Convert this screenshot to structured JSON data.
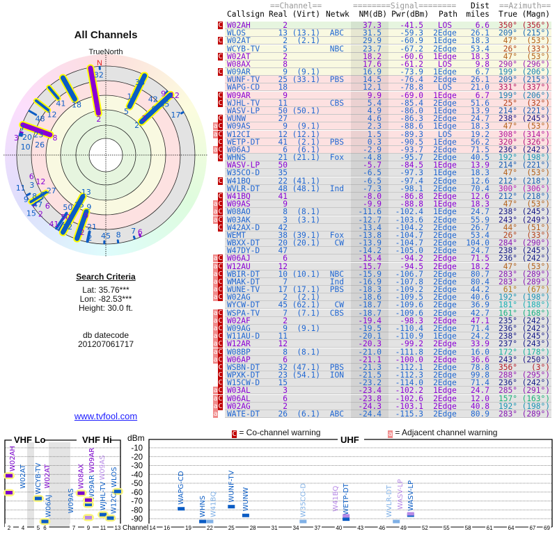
{
  "left_panel": {
    "title": "All Channels",
    "north_label": "TrueNorth",
    "north_marker": "N",
    "search_title": "Search Criteria",
    "lat": "Lat: 35.76***",
    "lon": "Lon: -82.53***",
    "height": "Height: 30.0 ft.",
    "db_label": "db datecode",
    "db_code": "201207061717",
    "link": "www.tvfool.com"
  },
  "table": {
    "group_headers": {
      "channel": "==Channel==",
      "signal": "========Signal========",
      "dist": "Dist",
      "azimuth": "==Azimuth=="
    },
    "headers": {
      "callsign": "Callsign",
      "real": "Real",
      "virt": "(Virt)",
      "netwk": "Netwk",
      "nm": "NM(dB)",
      "pwr": "Pwr(dBm)",
      "path": "Path",
      "miles": "miles",
      "true": "True",
      "magn": "(Magn)"
    },
    "rows": [
      {
        "w": "C",
        "cs": "W02AH",
        "ch": "2",
        "vt": "",
        "nw": "",
        "nm": "37.3",
        "pw": "-41.5",
        "pa": "LOS",
        "di": "6.6",
        "tr": "350°",
        "mg": "(356°)",
        "tx": true
      },
      {
        "w": "",
        "cs": "WLOS",
        "ch": "13",
        "vt": "(13.1)",
        "nw": "ABC",
        "nm": "31.5",
        "pw": "-59.3",
        "pa": "2Edge",
        "di": "26.1",
        "tr": "209°",
        "mg": "(215°)",
        "tx": false
      },
      {
        "w": "C",
        "cs": "W02AT",
        "ch": "2",
        "vt": "(2.1)",
        "nw": "",
        "nm": "29.9",
        "pw": "-60.9",
        "pa": "1Edge",
        "di": "18.3",
        "tr": "47°",
        "mg": "(53°)",
        "tx": false
      },
      {
        "w": "",
        "cs": "WCYB-TV",
        "ch": "5",
        "vt": "",
        "nw": "NBC",
        "nm": "23.7",
        "pw": "-67.2",
        "pa": "2Edge",
        "di": "53.4",
        "tr": "26°",
        "mg": "(33°)",
        "tx": false
      },
      {
        "w": "C",
        "cs": "W02AT",
        "ch": "2",
        "vt": "",
        "nw": "",
        "nm": "18.2",
        "pw": "-60.6",
        "pa": "1Edge",
        "di": "18.3",
        "tr": "47°",
        "mg": "(53°)",
        "tx": true
      },
      {
        "w": "",
        "cs": "W08AX",
        "ch": "8",
        "vt": "",
        "nw": "",
        "nm": "17.6",
        "pw": "-61.2",
        "pa": "LOS",
        "di": "9.8",
        "tr": "290°",
        "mg": "(296°)",
        "tx": true
      },
      {
        "w": "C",
        "cs": "W09AR",
        "ch": "9",
        "vt": "(9.1)",
        "nw": "",
        "nm": "16.9",
        "pw": "-73.9",
        "pa": "1Edge",
        "di": "6.7",
        "tr": "199°",
        "mg": "(206°)",
        "tx": false
      },
      {
        "w": "",
        "cs": "WUNF-TV",
        "ch": "25",
        "vt": "(33.1)",
        "nw": "PBS",
        "nm": "14.5",
        "pw": "-76.4",
        "pa": "2Edge",
        "di": "26.1",
        "tr": "209°",
        "mg": "(215°)",
        "tx": false
      },
      {
        "w": "",
        "cs": "WAPG-CD",
        "ch": "18",
        "vt": "",
        "nw": "",
        "nm": "12.1",
        "pw": "-78.8",
        "pa": "LOS",
        "di": "21.0",
        "tr": "331°",
        "mg": "(337°)",
        "tx": false
      },
      {
        "w": "C",
        "cs": "W09AR",
        "ch": "9",
        "vt": "",
        "nw": "",
        "nm": "9.9",
        "pw": "-69.0",
        "pa": "1Edge",
        "di": "6.7",
        "tr": "199°",
        "mg": "(206°)",
        "tx": true
      },
      {
        "w": "C",
        "cs": "WJHL-TV",
        "ch": "11",
        "vt": "",
        "nw": "CBS",
        "nm": "5.4",
        "pw": "-85.4",
        "pa": "2Edge",
        "di": "51.6",
        "tr": "25°",
        "mg": "(32°)",
        "tx": false
      },
      {
        "w": "",
        "cs": "WASV-LP",
        "ch": "50",
        "vt": "(50.1)",
        "nw": "",
        "nm": "4.9",
        "pw": "-86.0",
        "pa": "1Edge",
        "di": "13.9",
        "tr": "214°",
        "mg": "(221°)",
        "tx": false
      },
      {
        "w": "C",
        "cs": "WUNW",
        "ch": "27",
        "vt": "",
        "nw": "",
        "nm": "4.6",
        "pw": "-86.3",
        "pa": "2Edge",
        "di": "24.7",
        "tr": "238°",
        "mg": "(245°)",
        "tx": false
      },
      {
        "w": "aC",
        "cs": "W09AS",
        "ch": "9",
        "vt": "(9.1)",
        "nw": "",
        "nm": "2.3",
        "pw": "-88.6",
        "pa": "1Edge",
        "di": "18.3",
        "tr": "47°",
        "mg": "(53°)",
        "tx": false
      },
      {
        "w": "aC",
        "cs": "W12CI",
        "ch": "12",
        "vt": "(12.1)",
        "nw": "",
        "nm": "1.5",
        "pw": "-89.3",
        "pa": "LOS",
        "di": "19.2",
        "tr": "308°",
        "mg": "(314°)",
        "tx": false
      },
      {
        "w": "C",
        "cs": "WETP-DT",
        "ch": "41",
        "vt": "(2.1)",
        "nw": "PBS",
        "nm": "0.3",
        "pw": "-90.5",
        "pa": "1Edge",
        "di": "56.2",
        "tr": "320°",
        "mg": "(326°)",
        "tx": false
      },
      {
        "w": "aC",
        "cs": "W06AJ",
        "ch": "6",
        "vt": "(6.1)",
        "nw": "",
        "nm": "-2.9",
        "pw": "-93.7",
        "pa": "2Edge",
        "di": "71.5",
        "tr": "236°",
        "mg": "(242°)",
        "tx": false
      },
      {
        "w": "C",
        "cs": "WHNS",
        "ch": "21",
        "vt": "(21.1)",
        "nw": "Fox",
        "nm": "-4.8",
        "pw": "-95.7",
        "pa": "2Edge",
        "di": "40.5",
        "tr": "192°",
        "mg": "(198°)",
        "tx": false
      },
      {
        "w": "",
        "cs": "WASV-LP",
        "ch": "50",
        "vt": "",
        "nw": "",
        "nm": "-5.7",
        "pw": "-84.5",
        "pa": "1Edge",
        "di": "13.9",
        "tr": "214°",
        "mg": "(221°)",
        "tx": true
      },
      {
        "w": "",
        "cs": "W35CO-D",
        "ch": "35",
        "vt": "",
        "nw": "",
        "nm": "-6.5",
        "pw": "-97.3",
        "pa": "1Edge",
        "di": "18.3",
        "tr": "47°",
        "mg": "(53°)",
        "tx": false
      },
      {
        "w": "C",
        "cs": "W41BQ",
        "ch": "22",
        "vt": "(41.1)",
        "nw": "",
        "nm": "-6.5",
        "pw": "-97.4",
        "pa": "2Edge",
        "di": "12.6",
        "tr": "212°",
        "mg": "(218°)",
        "tx": false
      },
      {
        "w": "",
        "cs": "WVLR-DT",
        "ch": "48",
        "vt": "(48.1)",
        "nw": "Ind",
        "nm": "-7.3",
        "pw": "-98.1",
        "pa": "2Edge",
        "di": "70.4",
        "tr": "300°",
        "mg": "(306°)",
        "tx": false
      },
      {
        "w": "C",
        "cs": "W41BQ",
        "ch": "41",
        "vt": "",
        "nw": "",
        "nm": "-8.0",
        "pw": "-86.8",
        "pa": "2Edge",
        "di": "12.6",
        "tr": "212°",
        "mg": "(218°)",
        "tx": true
      },
      {
        "w": "aC",
        "cs": "W09AS",
        "ch": "9",
        "vt": "",
        "nw": "",
        "nm": "-9.9",
        "pw": "-88.8",
        "pa": "1Edge",
        "di": "18.3",
        "tr": "47°",
        "mg": "(53°)",
        "tx": true
      },
      {
        "w": "aC",
        "cs": "W08AO",
        "ch": "8",
        "vt": "(8.1)",
        "nw": "",
        "nm": "-11.6",
        "pw": "-102.4",
        "pa": "1Edge",
        "di": "24.7",
        "tr": "238°",
        "mg": "(245°)",
        "tx": false
      },
      {
        "w": "aC",
        "cs": "W03AK",
        "ch": "3",
        "vt": "(3.1)",
        "nw": "",
        "nm": "-12.7",
        "pw": "-103.6",
        "pa": "2Edge",
        "di": "55.9",
        "tr": "243°",
        "mg": "(249°)",
        "tx": false
      },
      {
        "w": "C",
        "cs": "W42AX-D",
        "ch": "42",
        "vt": "",
        "nw": "",
        "nm": "-13.4",
        "pw": "-104.2",
        "pa": "2Edge",
        "di": "26.7",
        "tr": "44°",
        "mg": "(51°)",
        "tx": false
      },
      {
        "w": "",
        "cs": "WEMT",
        "ch": "38",
        "vt": "(39.1)",
        "nw": "Fox",
        "nm": "-13.8",
        "pw": "-104.7",
        "pa": "2Edge",
        "di": "53.4",
        "tr": "26°",
        "mg": "(33°)",
        "tx": false
      },
      {
        "w": "",
        "cs": "WBXX-DT",
        "ch": "20",
        "vt": "(20.1)",
        "nw": "CW",
        "nm": "-13.9",
        "pw": "-104.7",
        "pa": "2Edge",
        "di": "104.0",
        "tr": "284°",
        "mg": "(290°)",
        "tx": false
      },
      {
        "w": "",
        "cs": "W47DY-D",
        "ch": "47",
        "vt": "",
        "nw": "",
        "nm": "-14.2",
        "pw": "-105.0",
        "pa": "2Edge",
        "di": "24.7",
        "tr": "238°",
        "mg": "(245°)",
        "tx": false
      },
      {
        "w": "aC",
        "cs": "W06AJ",
        "ch": "6",
        "vt": "",
        "nw": "",
        "nm": "-15.4",
        "pw": "-94.2",
        "pa": "2Edge",
        "di": "71.5",
        "tr": "236°",
        "mg": "(242°)",
        "tx": true
      },
      {
        "w": "aC",
        "cs": "W12AU",
        "ch": "12",
        "vt": "",
        "nw": "",
        "nm": "-15.7",
        "pw": "-94.5",
        "pa": "2Edge",
        "di": "18.2",
        "tr": "47°",
        "mg": "(53°)",
        "tx": true
      },
      {
        "w": "aC",
        "cs": "WBIR-DT",
        "ch": "10",
        "vt": "(10.1)",
        "nw": "NBC",
        "nm": "-15.9",
        "pw": "-106.7",
        "pa": "2Edge",
        "di": "80.7",
        "tr": "283°",
        "mg": "(289°)",
        "tx": false
      },
      {
        "w": "aC",
        "cs": "WMAK-DT",
        "ch": "7",
        "vt": "",
        "nw": "Ind",
        "nm": "-16.9",
        "pw": "-107.8",
        "pa": "2Edge",
        "di": "80.4",
        "tr": "283°",
        "mg": "(289°)",
        "tx": false
      },
      {
        "w": "aC",
        "cs": "WUNE-TV",
        "ch": "17",
        "vt": "(17.1)",
        "nw": "PBS",
        "nm": "-18.3",
        "pw": "-109.2",
        "pa": "2Edge",
        "di": "44.2",
        "tr": "61°",
        "mg": "(67°)",
        "tx": false
      },
      {
        "w": "aC",
        "cs": "W02AG",
        "ch": "2",
        "vt": "(2.1)",
        "nw": "",
        "nm": "-18.6",
        "pw": "-109.5",
        "pa": "2Edge",
        "di": "40.6",
        "tr": "192°",
        "mg": "(198°)",
        "tx": false
      },
      {
        "w": "",
        "cs": "WYCW-DT",
        "ch": "45",
        "vt": "(62.1)",
        "nw": "CW",
        "nm": "-18.7",
        "pw": "-109.6",
        "pa": "2Edge",
        "di": "36.9",
        "tr": "181°",
        "mg": "(188°)",
        "tx": false
      },
      {
        "w": "aC",
        "cs": "WSPA-TV",
        "ch": "7",
        "vt": "(7.1)",
        "nw": "CBS",
        "nm": "-18.7",
        "pw": "-109.6",
        "pa": "2Edge",
        "di": "42.7",
        "tr": "161°",
        "mg": "(168°)",
        "tx": false
      },
      {
        "w": "aC",
        "cs": "W02AF",
        "ch": "2",
        "vt": "",
        "nw": "",
        "nm": "-19.4",
        "pw": "-98.3",
        "pa": "2Edge",
        "di": "47.1",
        "tr": "235°",
        "mg": "(242°)",
        "tx": true
      },
      {
        "w": "aC",
        "cs": "W09AG",
        "ch": "9",
        "vt": "(9.1)",
        "nw": "",
        "nm": "-19.5",
        "pw": "-110.4",
        "pa": "2Edge",
        "di": "71.4",
        "tr": "236°",
        "mg": "(242°)",
        "tx": false
      },
      {
        "w": "aC",
        "cs": "W11AU-D",
        "ch": "11",
        "vt": "",
        "nw": "",
        "nm": "-20.1",
        "pw": "-110.9",
        "pa": "1Edge",
        "di": "24.2",
        "tr": "238°",
        "mg": "(245°)",
        "tx": false
      },
      {
        "w": "aC",
        "cs": "W12AR",
        "ch": "12",
        "vt": "",
        "nw": "",
        "nm": "-20.3",
        "pw": "-99.2",
        "pa": "2Edge",
        "di": "33.9",
        "tr": "237°",
        "mg": "(243°)",
        "tx": true
      },
      {
        "w": "aC",
        "cs": "W08BP",
        "ch": "8",
        "vt": "(8.1)",
        "nw": "",
        "nm": "-21.0",
        "pw": "-111.8",
        "pa": "2Edge",
        "di": "16.0",
        "tr": "172°",
        "mg": "(178°)",
        "tx": false
      },
      {
        "w": "aC",
        "cs": "W06AP",
        "ch": "6",
        "vt": "",
        "nw": "",
        "nm": "-21.1",
        "pw": "-100.0",
        "pa": "2Edge",
        "di": "36.6",
        "tr": "243°",
        "mg": "(250°)",
        "tx": true
      },
      {
        "w": "C",
        "cs": "WSBN-DT",
        "ch": "32",
        "vt": "(47.1)",
        "nw": "PBS",
        "nm": "-21.3",
        "pw": "-112.1",
        "pa": "2Edge",
        "di": "78.8",
        "tr": "356°",
        "mg": "(3°)",
        "tx": false
      },
      {
        "w": "C",
        "cs": "WPXK-DT",
        "ch": "23",
        "vt": "(54.1)",
        "nw": "ION",
        "nm": "-21.5",
        "pw": "-112.3",
        "pa": "2Edge",
        "di": "99.8",
        "tr": "288°",
        "mg": "(295°)",
        "tx": false
      },
      {
        "w": "C",
        "cs": "W15CW-D",
        "ch": "15",
        "vt": "",
        "nw": "",
        "nm": "-23.2",
        "pw": "-114.0",
        "pa": "2Edge",
        "di": "71.4",
        "tr": "236°",
        "mg": "(242°)",
        "tx": false
      },
      {
        "w": "aC",
        "cs": "W03AL",
        "ch": "3",
        "vt": "",
        "nw": "",
        "nm": "-23.4",
        "pw": "-102.2",
        "pa": "1Edge",
        "di": "24.7",
        "tr": "285°",
        "mg": "(291°)",
        "tx": true
      },
      {
        "w": "aC",
        "cs": "W06AL",
        "ch": "6",
        "vt": "",
        "nw": "",
        "nm": "-23.8",
        "pw": "-102.6",
        "pa": "2Edge",
        "di": "12.0",
        "tr": "157°",
        "mg": "(163°)",
        "tx": true
      },
      {
        "w": "aC",
        "cs": "W02AG",
        "ch": "2",
        "vt": "",
        "nw": "",
        "nm": "-24.3",
        "pw": "-103.1",
        "pa": "2Edge",
        "di": "40.8",
        "tr": "192°",
        "mg": "(198°)",
        "tx": true
      },
      {
        "w": "a",
        "cs": "WATE-DT",
        "ch": "26",
        "vt": "(6.1)",
        "nw": "ABC",
        "nm": "-24.4",
        "pw": "-115.3",
        "pa": "2Edge",
        "di": "80.9",
        "tr": "283°",
        "mg": "(289°)",
        "tx": false
      }
    ]
  },
  "legend": {
    "co_marker": "C",
    "co_label": "= Co-channel warning",
    "adj_marker": "a",
    "adj_label": "= Adjacent channel warning"
  },
  "spectrum": {
    "vhf_lo_title": "VHF Lo",
    "vhf_hi_title": "VHF Hi",
    "uhf_title": "UHF",
    "y_unit": "dBm",
    "y_ticks": [
      "-10",
      "-20",
      "-30",
      "-40",
      "-50",
      "-60",
      "-70",
      "-80",
      "-90"
    ],
    "x_label": "Channel",
    "vhf_lo_ticks": [
      "2",
      "4",
      "5",
      "6"
    ],
    "vhf_hi_ticks": [
      "7",
      "9",
      "11",
      "13"
    ],
    "uhf_ticks": [
      "14",
      "16",
      "19",
      "22",
      "25",
      "28",
      "31",
      "34",
      "37",
      "40",
      "43",
      "46",
      "49",
      "52",
      "55",
      "58",
      "61",
      "64",
      "67",
      "69"
    ]
  },
  "colors": {
    "normal_text": "#1f66d1",
    "translator_text": "#8a00d4",
    "co_channel": "#c00000",
    "adjacent": "#f08a8a",
    "zone_green": "#e6f5df",
    "zone_yellow": "#f9f9e1",
    "zone_pink": "#fde1e1",
    "zone_gray": "#e3e3e3",
    "highlight": "#ffff00",
    "north": "#e02020",
    "link": "#1a1aff"
  }
}
